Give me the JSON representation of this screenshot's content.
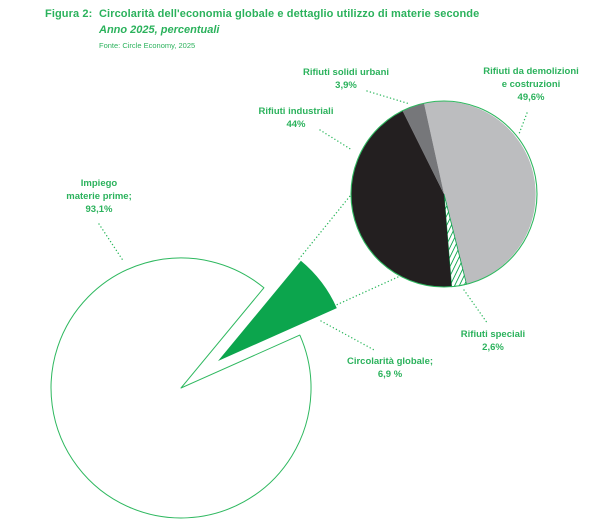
{
  "header": {
    "figure_label": "Figura 2:",
    "title": "Circolarità dell'economia globale e dettaglio utilizzo di materie seconde",
    "subtitle": "Anno 2025, percentuali",
    "source": "Fonte: Circle Economy, 2025"
  },
  "colors": {
    "green_text": "#2bb25c",
    "green_fill": "#0ca54d",
    "green_line": "#2eb85f",
    "black_slice": "#231f20",
    "dark_gray_slice": "#76777a",
    "light_gray_slice": "#bcbdbf",
    "white": "#ffffff"
  },
  "chart_data": [
    {
      "type": "pie",
      "name": "circolarita-economia-globale",
      "slices": [
        {
          "label": "Impiego materie prime",
          "value": 93.1,
          "display": "93,1%",
          "color_key": "white",
          "exploded": false
        },
        {
          "label": "Circolarità globale",
          "value": 6.9,
          "display": "6,9 %",
          "color_key": "green",
          "exploded": true
        }
      ]
    },
    {
      "type": "pie",
      "name": "dettaglio-utilizzo-materie-seconde",
      "slices": [
        {
          "label": "Rifiuti da demolizioni e costruzioni",
          "value": 49.6,
          "display": "49,6%",
          "color_key": "light_gray"
        },
        {
          "label": "Rifiuti speciali",
          "value": 2.6,
          "display": "2,6%",
          "color_key": "green_hatch"
        },
        {
          "label": "Rifiuti industriali",
          "value": 44,
          "display": "44%",
          "color_key": "black"
        },
        {
          "label": "Rifiuti solidi urbani",
          "value": 3.9,
          "display": "3,9%",
          "color_key": "dark_gray"
        }
      ]
    }
  ],
  "callouts": {
    "impiego": {
      "lines": [
        "Impiego",
        "materie prime;",
        "93,1%"
      ]
    },
    "circolarita": {
      "lines": [
        "Circolarità globale;",
        "6,9 %"
      ]
    },
    "industriali": {
      "lines": [
        "Rifiuti industriali",
        "44%"
      ]
    },
    "solidi_urbani": {
      "lines": [
        "Rifiuti solidi urbani",
        "3,9%"
      ]
    },
    "demolizioni": {
      "lines": [
        "Rifiuti da demolizioni",
        "e costruzioni",
        "49,6%"
      ]
    },
    "speciali": {
      "lines": [
        "Rifiuti speciali",
        "2,6%"
      ]
    }
  }
}
